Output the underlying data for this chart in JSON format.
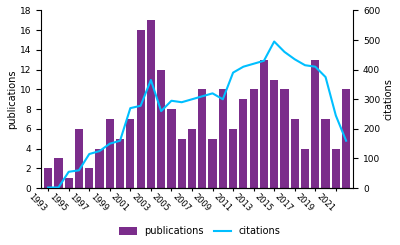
{
  "years": [
    1993,
    1994,
    1995,
    1996,
    1997,
    1998,
    1999,
    2000,
    2001,
    2002,
    2003,
    2004,
    2005,
    2006,
    2007,
    2008,
    2009,
    2010,
    2011,
    2012,
    2013,
    2014,
    2015,
    2016,
    2017,
    2018,
    2019,
    2020,
    2021,
    2022
  ],
  "publications": [
    2,
    3,
    1,
    6,
    2,
    4,
    7,
    5,
    7,
    16,
    17,
    12,
    8,
    5,
    6,
    10,
    5,
    10,
    6,
    9,
    10,
    13,
    11,
    10,
    7,
    4,
    13,
    7,
    4,
    10
  ],
  "citations": [
    2,
    2,
    55,
    60,
    115,
    125,
    150,
    160,
    270,
    278,
    365,
    260,
    295,
    290,
    300,
    310,
    320,
    300,
    390,
    410,
    420,
    430,
    495,
    460,
    435,
    415,
    410,
    375,
    245,
    160
  ],
  "bar_color": "#7B2D8B",
  "line_color": "#00BFFF",
  "pub_ylim": [
    0,
    18
  ],
  "cit_ylim": [
    0,
    600
  ],
  "pub_yticks": [
    0,
    2,
    4,
    6,
    8,
    10,
    12,
    14,
    16,
    18
  ],
  "cit_yticks": [
    0,
    100,
    200,
    300,
    400,
    500,
    600
  ],
  "ylabel_left": "publications",
  "ylabel_right": "citations",
  "legend_labels": [
    "publications",
    "citations"
  ],
  "background_color": "#ffffff",
  "tick_label_years": [
    1993,
    1995,
    1997,
    1999,
    2001,
    2003,
    2005,
    2007,
    2009,
    2011,
    2013,
    2015,
    2017,
    2019,
    2021
  ]
}
